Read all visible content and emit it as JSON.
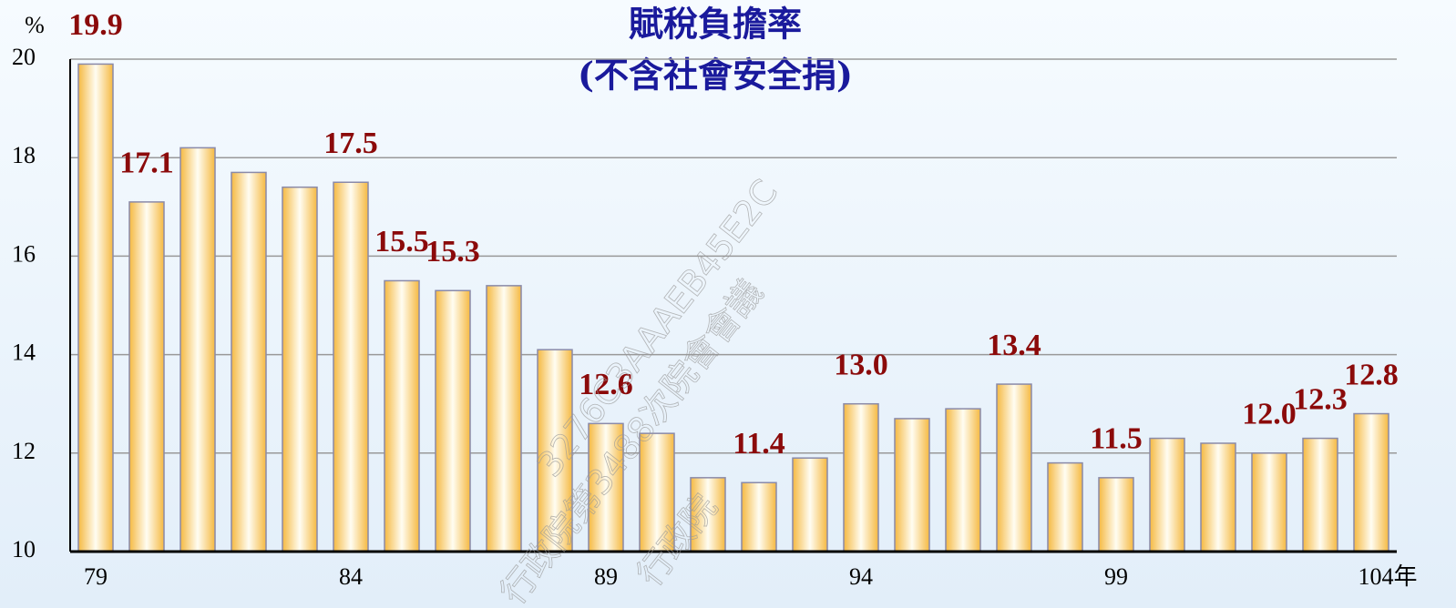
{
  "chart_data": {
    "type": "bar",
    "title": "賦稅負擔率",
    "subtitle": "(不含社會安全捐)",
    "y_unit": "%",
    "categories": [
      "79",
      null,
      null,
      null,
      null,
      "84",
      null,
      null,
      null,
      null,
      "89",
      null,
      null,
      null,
      null,
      "94",
      null,
      null,
      null,
      null,
      "99",
      null,
      null,
      null,
      null,
      "104年"
    ],
    "values": [
      19.9,
      17.1,
      18.2,
      17.7,
      17.4,
      17.5,
      15.5,
      15.3,
      15.4,
      14.1,
      12.6,
      12.4,
      11.5,
      11.4,
      11.9,
      13.0,
      12.7,
      12.9,
      13.4,
      11.8,
      11.5,
      12.3,
      12.2,
      12.0,
      12.3,
      12.8
    ],
    "value_labels": [
      "19.9",
      "17.1",
      null,
      null,
      null,
      "17.5",
      "15.5",
      "15.3",
      null,
      null,
      "12.6",
      null,
      null,
      "11.4",
      null,
      "13.0",
      null,
      null,
      "13.4",
      null,
      "11.5",
      null,
      null,
      "12.0",
      "12.3",
      "12.8"
    ],
    "color": "#f5b942",
    "ylim": [
      10,
      20
    ],
    "yticks": [
      10,
      12,
      14,
      16,
      18,
      20
    ],
    "grid": true,
    "watermark": [
      "3276C3AAAEB45E2C",
      "行政院第3488次院會會議",
      "行政院"
    ]
  }
}
